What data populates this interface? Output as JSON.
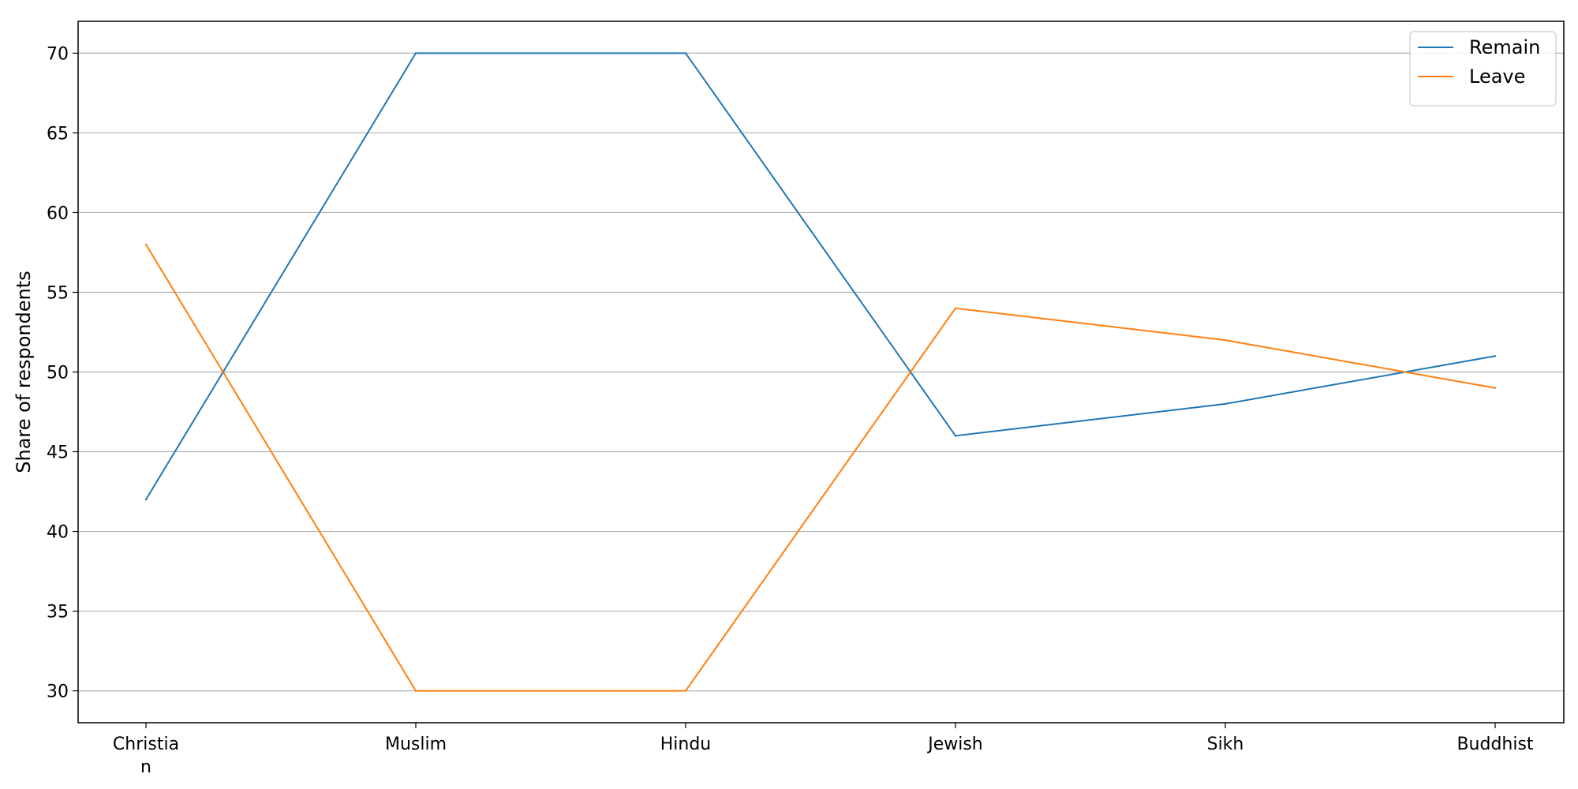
{
  "chart_data": {
    "type": "line",
    "title": "",
    "xlabel": "",
    "ylabel": "Share of respondents",
    "categories": [
      "Christia\nn",
      "Muslim",
      "Hindu",
      "Jewish",
      "Sikh",
      "Buddhist"
    ],
    "series": [
      {
        "name": "Remain",
        "color": "#1f77b4",
        "values": [
          42,
          70,
          70,
          46,
          48,
          51
        ]
      },
      {
        "name": "Leave",
        "color": "#ff7f0e",
        "values": [
          58,
          30,
          30,
          54,
          52,
          49
        ]
      }
    ],
    "yticks": [
      30,
      35,
      40,
      45,
      50,
      55,
      60,
      65,
      70
    ],
    "ylim": [
      28,
      72
    ],
    "grid": "horizontal",
    "legend_position": "top-right"
  }
}
